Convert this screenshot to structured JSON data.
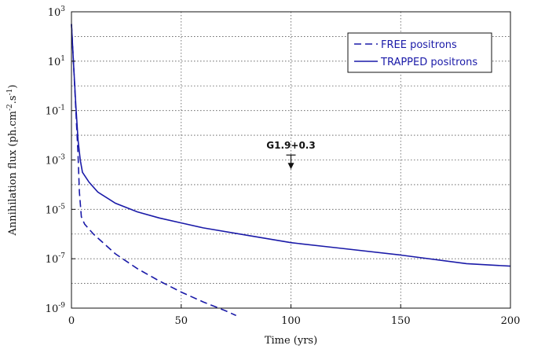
{
  "chart_data": {
    "type": "line",
    "xlabel": "Time (yrs)",
    "ylabel": "Annihilation flux (ph.cm",
    "ylabel_parts": [
      "Annihilation flux (ph.cm",
      "-2",
      ".s",
      "-1",
      ")"
    ],
    "xlim": [
      0,
      200
    ],
    "ylim_log10": [
      -9,
      3
    ],
    "y_scale": "log",
    "grid": true,
    "x_ticks": [
      0,
      50,
      100,
      150,
      200
    ],
    "y_ticks": [
      {
        "exp": 3,
        "base": "10",
        "sup": "3"
      },
      {
        "exp": 1,
        "base": "10",
        "sup": "1"
      },
      {
        "exp": -1,
        "base": "10",
        "sup": "-1"
      },
      {
        "exp": -3,
        "base": "10",
        "sup": "-3"
      },
      {
        "exp": -5,
        "base": "10",
        "sup": "-5"
      },
      {
        "exp": -7,
        "base": "10",
        "sup": "-7"
      },
      {
        "exp": -9,
        "base": "10",
        "sup": "-9"
      }
    ],
    "legend_position": "top-right",
    "series": [
      {
        "name": "FREE positrons",
        "style": "dashed",
        "color": "#1a1aa8",
        "points": [
          [
            0,
            2.5
          ],
          [
            1,
            0.8
          ],
          [
            2,
            -1.0
          ],
          [
            3,
            -2.8
          ],
          [
            3.6,
            -4.3
          ],
          [
            4.5,
            -5.3
          ],
          [
            6,
            -5.6
          ],
          [
            10,
            -6.0
          ],
          [
            15,
            -6.4
          ],
          [
            20,
            -6.8
          ],
          [
            30,
            -7.4
          ],
          [
            40,
            -7.9
          ],
          [
            50,
            -8.35
          ],
          [
            60,
            -8.75
          ],
          [
            70,
            -9.1
          ],
          [
            75,
            -9.3
          ]
        ]
      },
      {
        "name": "TRAPPED positrons",
        "style": "solid",
        "color": "#1a1aa8",
        "points": [
          [
            0,
            2.5
          ],
          [
            1,
            0.8
          ],
          [
            2,
            -0.8
          ],
          [
            3,
            -2.2
          ],
          [
            4,
            -3.0
          ],
          [
            5,
            -3.5
          ],
          [
            8,
            -3.9
          ],
          [
            12,
            -4.3
          ],
          [
            20,
            -4.75
          ],
          [
            30,
            -5.1
          ],
          [
            40,
            -5.35
          ],
          [
            50,
            -5.55
          ],
          [
            60,
            -5.75
          ],
          [
            80,
            -6.05
          ],
          [
            100,
            -6.35
          ],
          [
            120,
            -6.55
          ],
          [
            150,
            -6.85
          ],
          [
            180,
            -7.2
          ],
          [
            200,
            -7.3
          ]
        ]
      }
    ],
    "annotations": [
      {
        "text": "G1.9+0.3",
        "x": 100,
        "y_log10": -2.8,
        "arrow": "down"
      }
    ]
  }
}
